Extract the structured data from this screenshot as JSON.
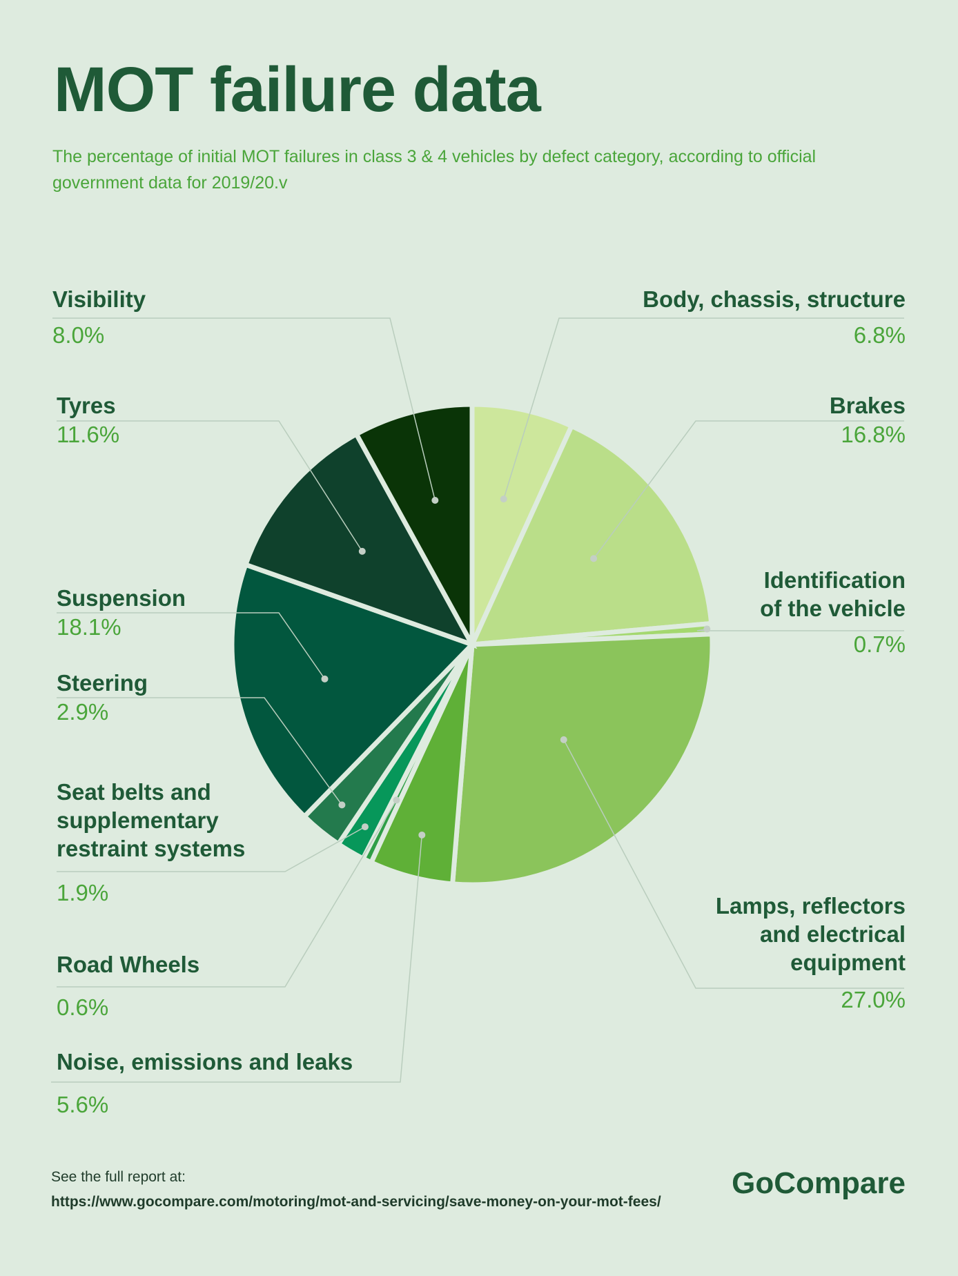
{
  "title": "MOT failure data",
  "subtitle": "The percentage of initial MOT failures in class 3 & 4 vehicles by defect category, according to official government data for 2019/20.v",
  "chart_data": {
    "type": "pie",
    "title": "MOT failure data",
    "slices": [
      {
        "name": "Body, chassis, structure",
        "value": 6.8,
        "label": "6.8%",
        "color": "#cde79c"
      },
      {
        "name": "Brakes",
        "value": 16.8,
        "label": "16.8%",
        "color": "#bade89"
      },
      {
        "name": "Identification of the vehicle",
        "value": 0.7,
        "label": "0.7%",
        "color": "#a4d86f"
      },
      {
        "name": "Lamps, reflectors and electrical equipment",
        "value": 27.0,
        "label": "27.0%",
        "color": "#8bc45b"
      },
      {
        "name": "Noise, emissions and leaks",
        "value": 5.6,
        "label": "5.6%",
        "color": "#5fb037"
      },
      {
        "name": "Road Wheels",
        "value": 0.6,
        "label": "0.6%",
        "color": "#2f9e47"
      },
      {
        "name": "Seat belts and supplementary restraint systems",
        "value": 1.9,
        "label": "1.9%",
        "color": "#07975a"
      },
      {
        "name": "Steering",
        "value": 2.9,
        "label": "2.9%",
        "color": "#237a4d"
      },
      {
        "name": "Suspension",
        "value": 18.1,
        "label": "18.1%",
        "color": "#02573e"
      },
      {
        "name": "Tyres",
        "value": 11.6,
        "label": "11.6%",
        "color": "#0f412c"
      },
      {
        "name": "Visibility",
        "value": 8.0,
        "label": "8.0%",
        "color": "#0a3407"
      }
    ]
  },
  "labels": {
    "body": {
      "lines": [
        "Body, chassis, structure"
      ],
      "pct": "6.8%"
    },
    "brakes": {
      "lines": [
        "Brakes"
      ],
      "pct": "16.8%"
    },
    "ident": {
      "lines": [
        "Identification",
        "of the vehicle"
      ],
      "pct": "0.7%"
    },
    "lamps": {
      "lines": [
        "Lamps, reflectors",
        "and electrical",
        "equipment"
      ],
      "pct": "27.0%"
    },
    "noise": {
      "lines": [
        "Noise, emissions and leaks"
      ],
      "pct": "5.6%"
    },
    "wheels": {
      "lines": [
        "Road Wheels"
      ],
      "pct": "0.6%"
    },
    "seatbelts": {
      "lines": [
        "Seat belts and",
        "supplementary",
        "restraint systems"
      ],
      "pct": "1.9%"
    },
    "steering": {
      "lines": [
        "Steering"
      ],
      "pct": "2.9%"
    },
    "suspension": {
      "lines": [
        "Suspension"
      ],
      "pct": "18.1%"
    },
    "tyres": {
      "lines": [
        "Tyres"
      ],
      "pct": "11.6%"
    },
    "visibility": {
      "lines": [
        "Visibility"
      ],
      "pct": "8.0%"
    }
  },
  "footer": {
    "note": "See the full report at:",
    "url": "https://www.gocompare.com/motoring/mot-and-servicing/save-money-on-your-mot-fees/",
    "logo": "GoCompare"
  }
}
